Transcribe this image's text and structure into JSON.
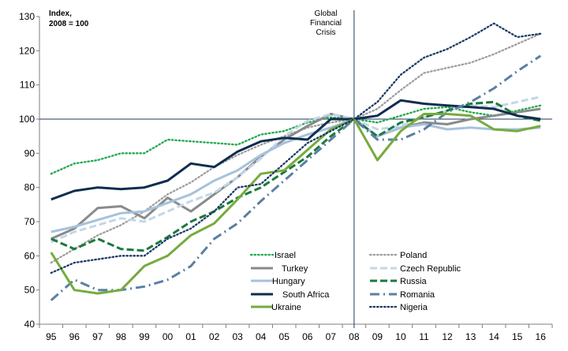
{
  "chart_data": {
    "type": "line",
    "title": "",
    "ylabel": "Index, 2008 = 100",
    "ylabel_line1": "Index,",
    "ylabel_line2": "2008 = 100",
    "xlabel": "",
    "ylim": [
      40,
      130
    ],
    "yticks": [
      40,
      50,
      60,
      70,
      80,
      90,
      100,
      110,
      120,
      130
    ],
    "categories": [
      "95",
      "96",
      "97",
      "98",
      "99",
      "00",
      "01",
      "02",
      "03",
      "04",
      "05",
      "06",
      "07",
      "08",
      "09",
      "10",
      "11",
      "12",
      "13",
      "14",
      "15",
      "16"
    ],
    "reference_line": 100,
    "event_line": {
      "category": "08",
      "label_lines": [
        "Global",
        "Financial",
        "Crisis"
      ]
    },
    "series": [
      {
        "name": "Israel",
        "color": "#1fa94b",
        "dash": "dotted",
        "values": [
          84,
          87,
          88,
          90,
          90,
          94,
          93.5,
          93,
          92.5,
          95.5,
          96.5,
          99,
          100.5,
          100,
          99,
          101,
          103,
          103.5,
          102,
          101,
          102.5,
          104
        ]
      },
      {
        "name": "Poland",
        "color": "#9d9d9d",
        "dash": "dotted",
        "values": [
          58,
          62,
          66,
          69,
          73,
          78,
          81.5,
          86,
          89.5,
          92.5,
          95,
          97.5,
          99,
          100,
          103,
          108.5,
          113.5,
          115,
          116.5,
          119,
          122,
          125
        ]
      },
      {
        "name": "Turkey",
        "color": "#8a8a8a",
        "dash": "solid",
        "values": [
          65,
          68,
          74,
          74.5,
          71,
          77,
          73,
          78,
          83,
          89,
          94,
          98,
          101.5,
          100,
          95,
          97.5,
          99,
          98.5,
          100,
          101,
          102,
          103
        ]
      },
      {
        "name": "Czech Republic",
        "color": "#c3d7ea",
        "dash": "dashed",
        "values": [
          64,
          67,
          69,
          71,
          70,
          73,
          76,
          78.5,
          83,
          88.5,
          95,
          99.5,
          101.5,
          100,
          97,
          98,
          100.5,
          102.5,
          104,
          103.5,
          105,
          106.5
        ]
      },
      {
        "name": "Hungary",
        "color": "#a6c2dc",
        "dash": "solid",
        "values": [
          67,
          68.5,
          70.5,
          72.5,
          73,
          75.5,
          78,
          82,
          85,
          89.5,
          93,
          95.5,
          97.5,
          100,
          95,
          97.5,
          98.5,
          97,
          97.5,
          97,
          97,
          97.5
        ]
      },
      {
        "name": "Russia",
        "color": "#1a7a3c",
        "dash": "dashed",
        "values": [
          65,
          62,
          65,
          62,
          61.5,
          65.5,
          70,
          73,
          77,
          80,
          84.5,
          89,
          95,
          100,
          95,
          99,
          100.5,
          102.5,
          104.5,
          105,
          101,
          99.5
        ]
      },
      {
        "name": "South Africa",
        "color": "#0f2d4f",
        "dash": "solid",
        "values": [
          76.5,
          79,
          80,
          79.5,
          80,
          82,
          87,
          86,
          90.5,
          93.5,
          94.5,
          94,
          100,
          100,
          101,
          105.5,
          104.5,
          104,
          103.5,
          103,
          101,
          100
        ]
      },
      {
        "name": "Romania",
        "color": "#5b7fa3",
        "dash": "dashdot",
        "values": [
          47,
          53,
          50,
          50,
          51,
          53,
          57,
          65,
          69.5,
          76,
          82,
          88,
          94,
          100,
          94,
          94,
          97,
          102,
          105,
          109,
          114,
          118.5
        ]
      },
      {
        "name": "Ukraine",
        "color": "#76ab3c",
        "dash": "solid",
        "values": [
          61,
          50,
          49,
          50,
          57,
          60,
          66,
          69.5,
          76.5,
          84,
          85,
          91,
          97,
          100,
          88,
          96.5,
          101.5,
          101.5,
          101,
          97,
          96.5,
          98
        ]
      },
      {
        "name": "Nigeria",
        "color": "#1a3a66",
        "dash": "dotted",
        "values": [
          55,
          58,
          59,
          60,
          60,
          65,
          68,
          73,
          80,
          81,
          87,
          93,
          96.5,
          100,
          105,
          113,
          118,
          120.5,
          124,
          128,
          124,
          125
        ]
      }
    ],
    "legend": [
      [
        "Israel",
        "Poland"
      ],
      [
        "Turkey",
        "Czech Republic"
      ],
      [
        "Hungary",
        "Russia"
      ],
      [
        "South Africa",
        "Romania"
      ],
      [
        "Ukraine",
        "Nigeria"
      ]
    ]
  }
}
